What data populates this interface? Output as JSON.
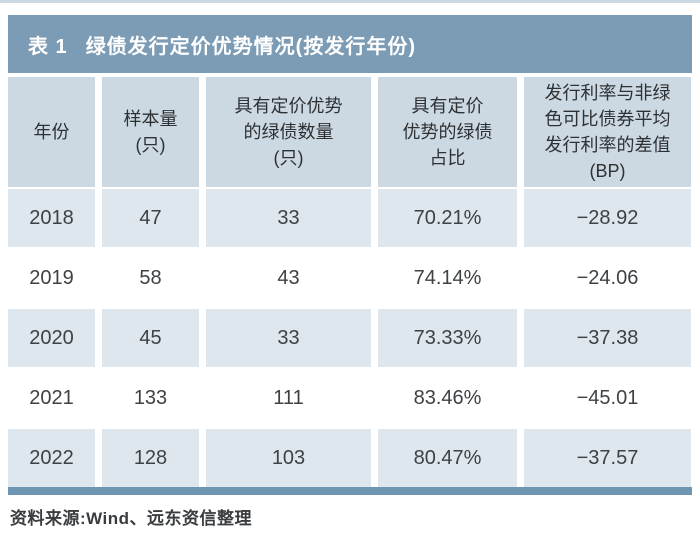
{
  "title": {
    "tag": "表 1",
    "text": "绿债发行定价优势情况(按发行年份)"
  },
  "table": {
    "headers": [
      "年份",
      "样本量\n(只)",
      "具有定价优势\n的绿债数量\n(只)",
      "具有定价\n优势的绿债\n占比",
      "发行利率与非绿\n色可比债券平均\n发行利率的差值\n(BP)"
    ],
    "rows": [
      [
        "2018",
        "47",
        "33",
        "70.21%",
        "−28.92"
      ],
      [
        "2019",
        "58",
        "43",
        "74.14%",
        "−24.06"
      ],
      [
        "2020",
        "45",
        "33",
        "73.33%",
        "−37.38"
      ],
      [
        "2021",
        "133",
        "111",
        "83.46%",
        "−45.01"
      ],
      [
        "2022",
        "128",
        "103",
        "80.47%",
        "−37.57"
      ]
    ]
  },
  "footer": {
    "source": "资料来源:Wind、远东资信整理"
  },
  "chart_data": {
    "type": "table",
    "title": "表 1 绿债发行定价优势情况(按发行年份)",
    "columns": [
      "年份",
      "样本量(只)",
      "具有定价优势的绿债数量(只)",
      "具有定价优势的绿债占比",
      "发行利率与非绿色可比债券平均发行利率的差值(BP)"
    ],
    "rows": [
      [
        "2018",
        47,
        33,
        "70.21%",
        -28.92
      ],
      [
        "2019",
        58,
        43,
        "74.14%",
        -24.06
      ],
      [
        "2020",
        45,
        33,
        "73.33%",
        -37.38
      ],
      [
        "2021",
        133,
        111,
        "83.46%",
        -45.01
      ],
      [
        "2022",
        128,
        103,
        "80.47%",
        -37.57
      ]
    ],
    "source": "资料来源:Wind、远东资信整理"
  },
  "colors": {
    "title_bar": "#7c9cb5",
    "header_bg": "#ccd9e2",
    "row_alt_bg": "#dee7ee",
    "row_bg": "#ffffff",
    "top_strip": "#ccd8e2",
    "bottom_strip": "#6e95b1",
    "title_text": "#ffffff",
    "cell_text": "#3e4245",
    "header_text": "#2e3134",
    "footer_text": "#3a3d40"
  }
}
